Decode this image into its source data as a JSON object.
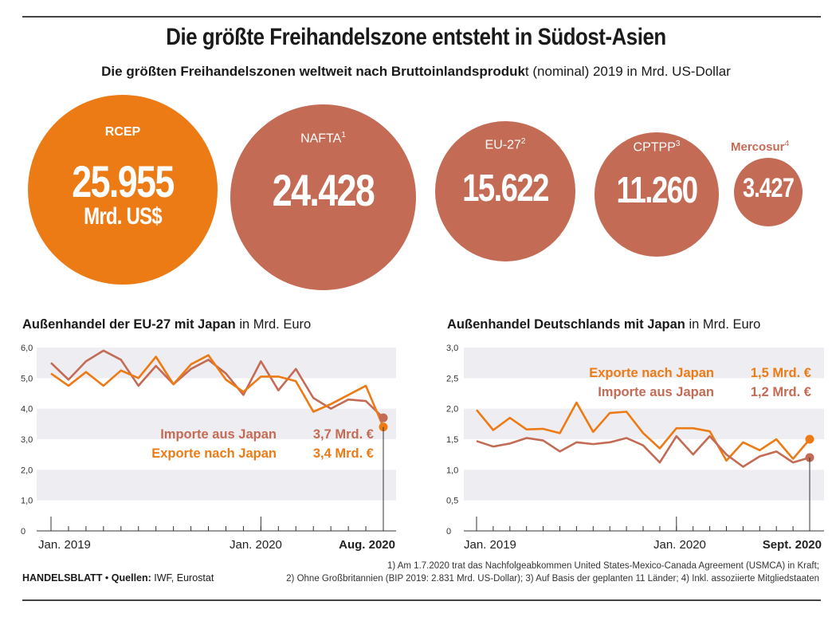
{
  "header": {
    "title": "Die größte Freihandelszone entsteht in Südost-Asien",
    "subtitle_bold": "Die größten Freihandelszonen weltweit nach Bruttoinlandsproduk",
    "subtitle_rest": "t (nominal) 2019 in Mrd. US-Dollar"
  },
  "bubbles": [
    {
      "name": "RCEP",
      "sup": "",
      "value": "25.955",
      "unit": "Mrd. US$",
      "color": "#ec7b16"
    },
    {
      "name": "NAFTA",
      "sup": "1",
      "value": "24.428",
      "unit": "",
      "color": "#c46b55"
    },
    {
      "name": "EU-27",
      "sup": "2",
      "value": "15.622",
      "unit": "",
      "color": "#c46b55"
    },
    {
      "name": "CPTPP",
      "sup": "3",
      "value": "11.260",
      "unit": "",
      "color": "#c46b55"
    },
    {
      "name": "Mercosur",
      "sup": "4",
      "value": "3.427",
      "unit": "",
      "color": "#c46b55"
    }
  ],
  "colors": {
    "orange": "#ec7b16",
    "brown": "#c46b55",
    "band": "#eeeef2",
    "axis": "#555555"
  },
  "chart_data": [
    {
      "type": "line",
      "title_bold": "Außenhandel der EU-27 mit Japan",
      "title_rest": " in Mrd. Euro",
      "ylim": [
        0,
        6
      ],
      "yticks": [
        "0",
        "1,0",
        "2,0",
        "3,0",
        "4,0",
        "5,0",
        "6,0"
      ],
      "xlabels": [
        "Jan. 2019",
        "Jan. 2020",
        "Aug. 2020"
      ],
      "series": [
        {
          "name": "Importe aus Japan",
          "color": "#c46b55",
          "label_value": "3,7 Mrd. €",
          "values": [
            5.5,
            4.95,
            5.55,
            5.9,
            5.6,
            4.75,
            5.4,
            4.8,
            5.3,
            5.6,
            5.15,
            4.45,
            5.55,
            4.6,
            5.3,
            4.35,
            4.0,
            4.3,
            4.25,
            3.7
          ]
        },
        {
          "name": "Exporte nach Japan",
          "color": "#ec7b16",
          "label_value": "3,4 Mrd. €",
          "values": [
            5.15,
            4.75,
            5.2,
            4.75,
            5.25,
            5.0,
            5.7,
            4.8,
            5.45,
            5.75,
            4.95,
            4.55,
            5.05,
            5.05,
            4.9,
            3.9,
            4.15,
            4.45,
            4.75,
            3.4
          ]
        }
      ]
    },
    {
      "type": "line",
      "title_bold": "Außenhandel Deutschlands mit Japan",
      "title_rest": " in Mrd. Euro",
      "ylim": [
        0,
        3
      ],
      "yticks": [
        "0",
        "0,5",
        "1,0",
        "1,5",
        "2,0",
        "2,5",
        "3,0"
      ],
      "xlabels": [
        "Jan. 2019",
        "Jan. 2020",
        "Sept. 2020"
      ],
      "series": [
        {
          "name": "Exporte nach Japan",
          "color": "#ec7b16",
          "label_value": "1,5 Mrd. €",
          "values": [
            1.98,
            1.65,
            1.85,
            1.66,
            1.67,
            1.6,
            2.1,
            1.62,
            1.93,
            1.95,
            1.6,
            1.35,
            1.68,
            1.68,
            1.63,
            1.15,
            1.45,
            1.32,
            1.5,
            1.18,
            1.5
          ]
        },
        {
          "name": "Importe aus Japan",
          "color": "#c46b55",
          "label_value": "1,2 Mrd. €",
          "values": [
            1.47,
            1.38,
            1.43,
            1.52,
            1.48,
            1.3,
            1.45,
            1.42,
            1.45,
            1.52,
            1.4,
            1.12,
            1.55,
            1.25,
            1.55,
            1.25,
            1.05,
            1.22,
            1.3,
            1.12,
            1.2
          ]
        }
      ]
    }
  ],
  "footer": {
    "brand": "HANDELSBLATT",
    "sources_label": "Quellen:",
    "sources": "IWF, Eurostat",
    "note1": "1) Am 1.7.2020 trat das Nachfolgeabkommen United States-Mexico-Canada Agreement (USMCA) in Kraft;",
    "note2": "2) Ohne Großbritannien (BIP 2019: 2.831 Mrd. US-Dollar); 3) Auf Basis der geplanten 11 Länder; 4) Inkl. assoziierte Mitgliedstaaten"
  }
}
